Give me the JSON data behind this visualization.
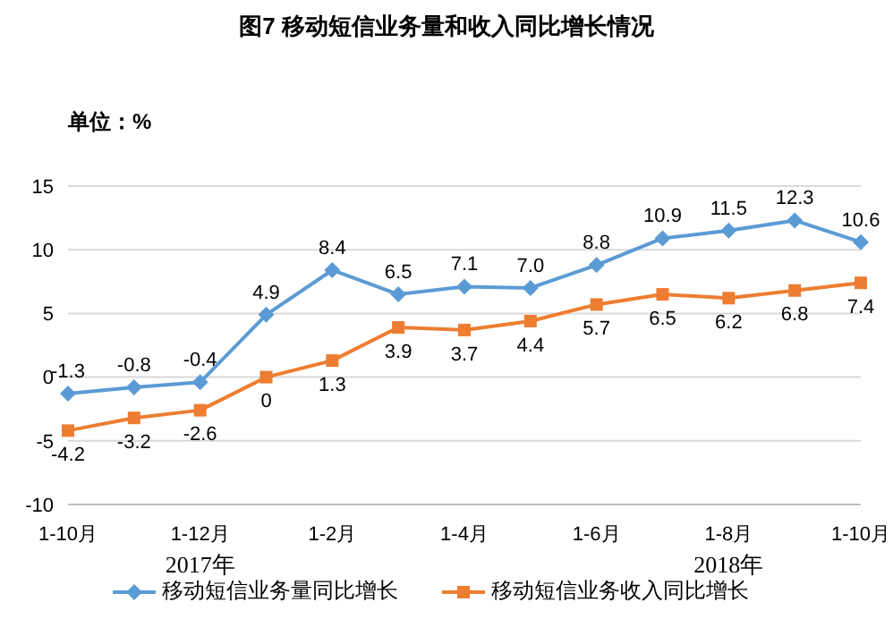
{
  "chart_data": {
    "type": "line",
    "title": "图7  移动短信业务量和收入同比增长情况",
    "ylabel": "单位：%",
    "categories": [
      "1-10月",
      null,
      "1-12月",
      null,
      "1-2月",
      null,
      "1-4月",
      null,
      "1-6月",
      null,
      "1-8月",
      null,
      "1-10月"
    ],
    "series": [
      {
        "name": "移动短信业务量同比增长",
        "color": "#5b9bd5",
        "marker": "diamond",
        "values": [
          -1.3,
          -0.8,
          -0.4,
          4.9,
          8.4,
          6.5,
          7.1,
          7.0,
          8.8,
          10.9,
          11.5,
          12.3,
          10.6
        ],
        "value_labels": [
          "-1.3",
          "-0.8",
          "-0.4",
          "4.9",
          "8.4",
          "6.5",
          "7.1",
          "7.0",
          "8.8",
          "10.9",
          "11.5",
          "12.3",
          "10.6"
        ]
      },
      {
        "name": "移动短信业务收入同比增长",
        "color": "#ed7d31",
        "marker": "square",
        "values": [
          -4.2,
          -3.2,
          -2.6,
          0,
          1.3,
          3.9,
          3.7,
          4.4,
          5.7,
          6.5,
          6.2,
          6.8,
          7.4
        ]
      }
    ],
    "ylim": [
      -10,
      15
    ],
    "yticks": [
      -10,
      -5,
      0,
      5,
      10,
      15
    ],
    "grid": "y",
    "legend": "bottom",
    "data_labels": true,
    "annotations": [
      "2017年",
      "2018年"
    ]
  }
}
